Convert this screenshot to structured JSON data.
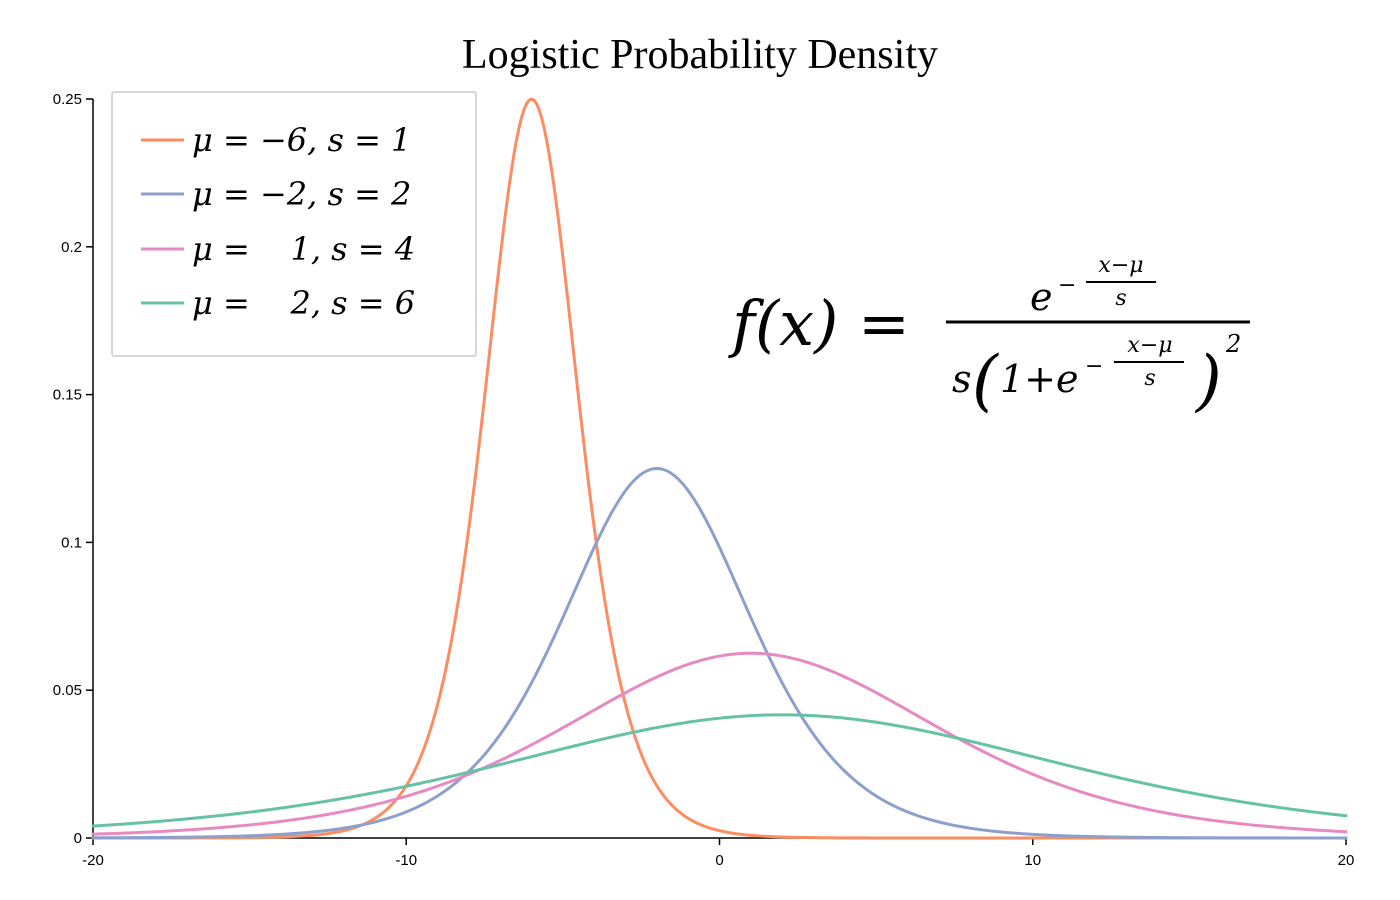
{
  "chart_data": {
    "type": "line",
    "title": "Logistic Probability Density",
    "xlabel": "",
    "ylabel": "",
    "xlim": [
      -20,
      20
    ],
    "ylim": [
      0,
      0.25
    ],
    "x_ticks": [
      -20,
      -10,
      0,
      10,
      20
    ],
    "x_tick_labels": [
      "-20",
      "-10",
      "0",
      "10",
      "20"
    ],
    "y_ticks": [
      0,
      0.05,
      0.1,
      0.15,
      0.2,
      0.25
    ],
    "y_tick_labels": [
      "0",
      "0.05",
      "0.1",
      "0.15",
      "0.2",
      "0.25"
    ],
    "grid": false,
    "legend_position": "top-left",
    "series": [
      {
        "name": "μ = −6, s = 1",
        "mu": -6,
        "s": 1,
        "color": "#fc8d62",
        "x": [
          -20,
          -12,
          -10,
          -8,
          -7,
          -6,
          -5,
          -4,
          -2,
          0,
          20
        ],
        "values": [
          8e-07,
          0.0025,
          0.0177,
          0.105,
          0.1966,
          0.25,
          0.1966,
          0.105,
          0.0177,
          0.0025,
          0.0
        ]
      },
      {
        "name": "μ = −2, s = 2",
        "mu": -2,
        "s": 2,
        "color": "#8da0cb",
        "x": [
          -20,
          -10,
          -6,
          -4,
          -2,
          0,
          2,
          6,
          10,
          20
        ],
        "values": [
          6e-05,
          0.0088,
          0.0525,
          0.0983,
          0.125,
          0.0983,
          0.0525,
          0.0088,
          0.0012,
          6e-05
        ]
      },
      {
        "name": "μ =    1, s = 4",
        "mu": 1,
        "s": 4,
        "color": "#e78ac3",
        "x": [
          -20,
          -10,
          -5,
          0,
          1,
          5,
          10,
          15,
          20
        ],
        "values": [
          0.0013,
          0.0153,
          0.0377,
          0.0615,
          0.0625,
          0.0491,
          0.023,
          0.0072,
          0.0013
        ]
      },
      {
        "name": "μ =    2, s = 6",
        "mu": 2,
        "s": 6,
        "color": "#66c2a5",
        "x": [
          -20,
          -10,
          -5,
          0,
          2,
          5,
          10,
          15,
          20
        ],
        "values": [
          0.0041,
          0.0155,
          0.029,
          0.0407,
          0.0417,
          0.0393,
          0.0281,
          0.0161,
          0.0078
        ]
      }
    ],
    "annotation": {
      "lhs": "f(x) =",
      "numerator_base": "e",
      "numerator_exp_sign": "−",
      "exp_fraction_num": "x−μ",
      "exp_fraction_den": "s",
      "denominator_prefix": "s",
      "denominator_inner": "1+e",
      "denominator_exp_sign": "−",
      "power": "2"
    }
  }
}
